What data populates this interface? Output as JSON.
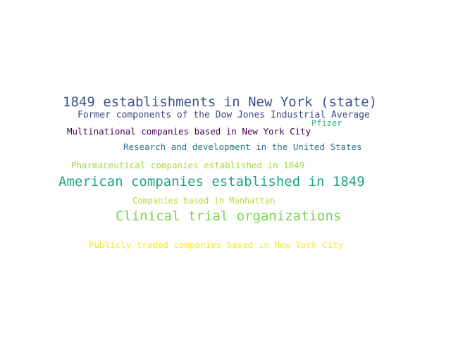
{
  "words": [
    {
      "text": "1849 establishments in New York (state)",
      "color": "#3b528b"
    },
    {
      "text": "Former components of the Dow Jones Industrial Average",
      "color": "#414487"
    },
    {
      "text": "Pfizer",
      "color": "#35b779"
    },
    {
      "text": "Multinational companies based in New York City",
      "color": "#440154"
    },
    {
      "text": "Research and development in the United States",
      "color": "#2c728e"
    },
    {
      "text": "Pharmaceutical companies established in 1849",
      "color": "#a0da39"
    },
    {
      "text": "American companies established in 1849",
      "color": "#1fa187"
    },
    {
      "text": "Companies based in Manhattan",
      "color": "#b5de2b"
    },
    {
      "text": "Clinical trial organizations",
      "color": "#7ad151"
    },
    {
      "text": "Publicly traded companies based in New York City",
      "color": "#fde725"
    }
  ]
}
